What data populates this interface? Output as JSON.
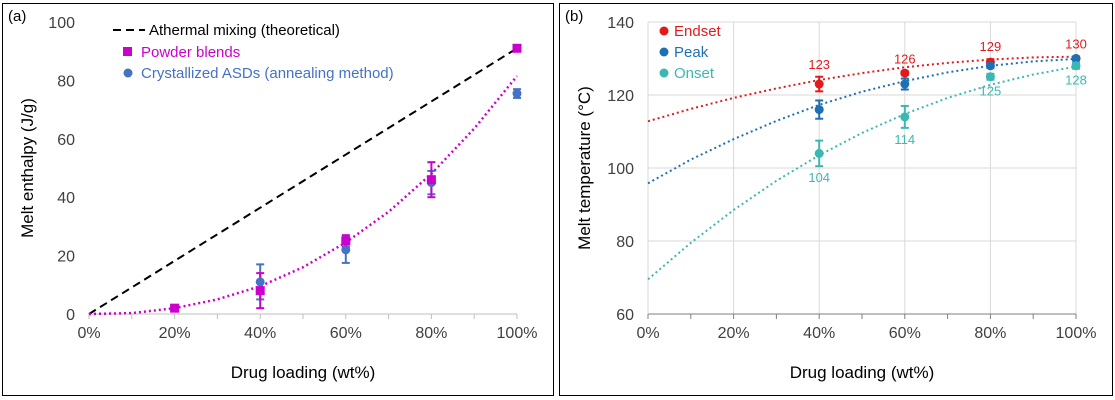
{
  "chart_data": [
    {
      "panel": "(a)",
      "type": "scatter",
      "xlabel": "Drug loading (wt%)",
      "ylabel": "Melt enthalpy (J/g)",
      "xlim": [
        0,
        100
      ],
      "ylim": [
        0,
        100
      ],
      "x_ticks": [
        "0%",
        "20%",
        "40%",
        "60%",
        "80%",
        "100%"
      ],
      "y_ticks": [
        "0",
        "20",
        "40",
        "60",
        "80",
        "100"
      ],
      "grid": false,
      "legend_position": "top-left",
      "series": [
        {
          "name": "Athermal mixing (theoretical)",
          "style": "dashed-line",
          "color": "#000000",
          "x": [
            0,
            100
          ],
          "y": [
            0,
            91
          ]
        },
        {
          "name": "Powder blends",
          "style": "square-markers",
          "color": "#CC00CC",
          "x": [
            20,
            40,
            60,
            80,
            100
          ],
          "y": [
            2,
            8,
            25,
            46,
            91
          ],
          "error": [
            0.5,
            6,
            2,
            6,
            0.6
          ]
        },
        {
          "name": "Crystallized ASDs (annealing method)",
          "style": "circle-markers",
          "color": "#4472C4",
          "x": [
            40,
            60,
            80,
            100
          ],
          "y": [
            11,
            22,
            45,
            75.5
          ],
          "error": [
            6,
            4.5,
            4,
            1.5
          ]
        },
        {
          "name": "",
          "style": "dotted-fit",
          "color": "#CC00CC",
          "x": [
            0,
            10,
            20,
            30,
            40,
            50,
            60,
            70,
            80,
            90,
            100
          ],
          "y": [
            0,
            0.3,
            2,
            5,
            9.5,
            16,
            24.5,
            35,
            48,
            63.5,
            81.5
          ]
        }
      ]
    },
    {
      "panel": "(b)",
      "type": "scatter",
      "xlabel": "Drug loading (wt%)",
      "ylabel": "Melt temperature (°C)",
      "xlim": [
        0,
        100
      ],
      "ylim": [
        60,
        140
      ],
      "x_ticks": [
        "0%",
        "20%",
        "40%",
        "60%",
        "80%",
        "100%"
      ],
      "y_ticks": [
        "60",
        "80",
        "100",
        "120",
        "140"
      ],
      "grid": true,
      "legend_position": "top-left",
      "series": [
        {
          "name": "Endset",
          "color": "#E31A1C",
          "x": [
            40,
            60,
            80,
            100
          ],
          "y": [
            123,
            126,
            129,
            130
          ],
          "error": [
            2,
            0.5,
            0.8,
            0.5
          ],
          "labels": [
            "123",
            "126",
            "129",
            "130"
          ],
          "label_pos": "above",
          "fit_y": [
            112.8,
            116.2,
            119.2,
            121.8,
            124.1,
            126.0,
            127.6,
            128.8,
            129.7,
            130.3,
            130.5
          ]
        },
        {
          "name": "Peak",
          "color": "#1F6FB5",
          "x": [
            40,
            60,
            80,
            100
          ],
          "y": [
            116,
            123,
            128,
            130
          ],
          "error": [
            2.5,
            1.5,
            0.6,
            0.5
          ],
          "labels": [],
          "label_pos": "none",
          "fit_y": [
            95.8,
            102.3,
            107.9,
            112.9,
            117.3,
            120.9,
            123.8,
            126.2,
            128.0,
            129.2,
            129.9
          ]
        },
        {
          "name": "Onset",
          "color": "#3CB8B2",
          "x": [
            40,
            60,
            80,
            100
          ],
          "y": [
            104,
            114,
            125,
            128
          ],
          "error": [
            3.5,
            3,
            0.8,
            0.8
          ],
          "labels": [
            "104",
            "114",
            "125",
            "128"
          ],
          "label_pos": "below",
          "fit_y": [
            69.5,
            79.5,
            88.5,
            96.5,
            103.5,
            109.6,
            114.8,
            119.2,
            122.8,
            125.6,
            127.8
          ]
        }
      ],
      "fit_x": [
        0,
        10,
        20,
        30,
        40,
        50,
        60,
        70,
        80,
        90,
        100
      ]
    }
  ]
}
